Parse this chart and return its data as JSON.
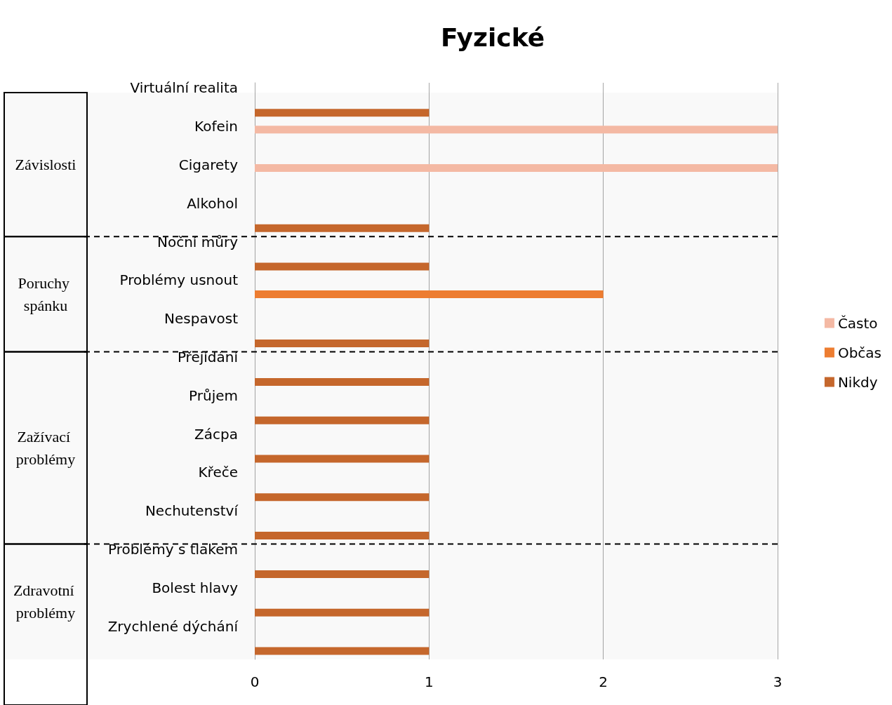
{
  "chart_data": {
    "type": "bar",
    "orientation": "horizontal",
    "title": "Fyzické",
    "categories": [
      "Virtuální realita",
      "Kofein",
      "Cigarety",
      "Alkohol",
      "Noční můry",
      "Problémy usnout",
      "Nespavost",
      "Přejídání",
      "Průjem",
      "Zácpa",
      "Křeče",
      "Nechutenství",
      "Problémy s tlakem",
      "Bolest hlavy",
      "Zrychlené dýchání"
    ],
    "series": [
      {
        "name": "Často",
        "color": "#f4b9a4",
        "values": [
          null,
          3,
          3,
          null,
          null,
          null,
          null,
          null,
          null,
          null,
          null,
          null,
          null,
          null,
          null
        ]
      },
      {
        "name": "Občas",
        "color": "#ed7d31",
        "values": [
          null,
          null,
          null,
          null,
          null,
          2,
          null,
          null,
          null,
          null,
          null,
          null,
          null,
          null,
          null
        ]
      },
      {
        "name": "Nikdy",
        "color": "#c5672c",
        "values": [
          1,
          null,
          null,
          1,
          1,
          null,
          1,
          1,
          1,
          1,
          1,
          1,
          1,
          1,
          1
        ]
      }
    ],
    "xlim": [
      0,
      3
    ],
    "xticks": [
      0,
      1,
      2,
      3
    ],
    "grid": "x",
    "legend": "right",
    "bands": [
      {
        "axis": "y",
        "from": "Virtuální realita",
        "to": "Alkohol",
        "label": "Závislosti"
      },
      {
        "axis": "y",
        "from": "Noční můry",
        "to": "Nespavost",
        "label": "Poruchy spánku"
      },
      {
        "axis": "y",
        "from": "Přejídání",
        "to": "Nechutenství",
        "label": "Zažívací problémy"
      },
      {
        "axis": "y",
        "from": "Problémy s tlakem",
        "to": "Zrychlené dýchání",
        "label": "Zdravotní problémy"
      }
    ]
  }
}
